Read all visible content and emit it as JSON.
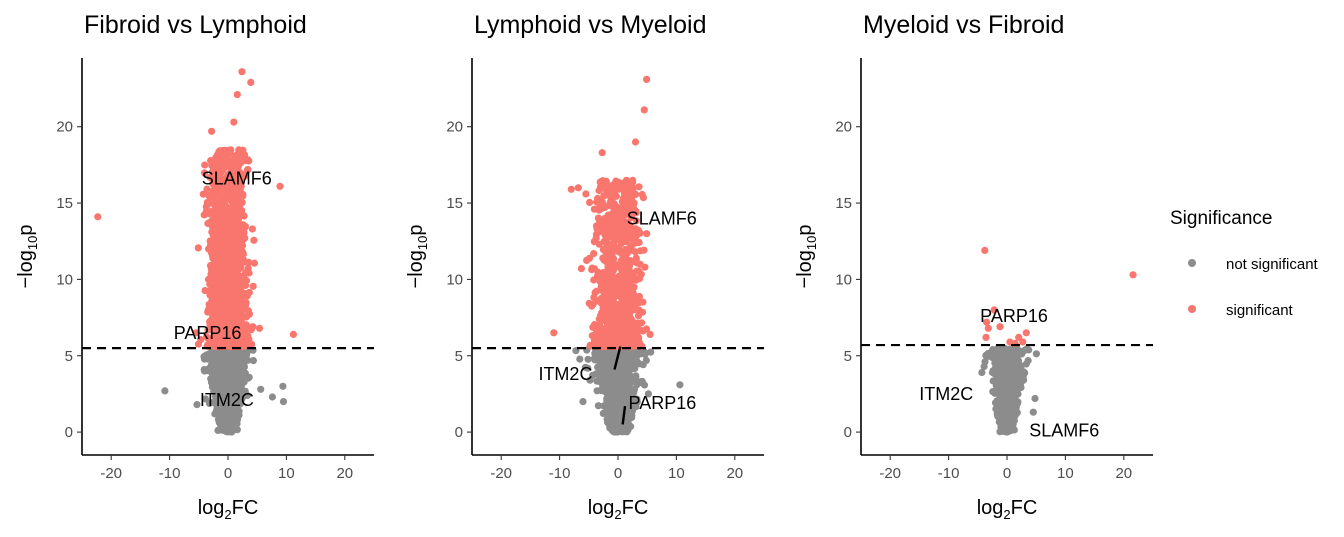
{
  "chart_data": [
    {
      "type": "scatter",
      "title": "Fibroid vs Lymphoid",
      "xlabel": {
        "base": "log",
        "sub": "2",
        "rest": "FC"
      },
      "ylabel": {
        "pre": "−log",
        "sub": "10",
        "rest": "p"
      },
      "xlim": [
        -25,
        25
      ],
      "ylim": [
        -1.5,
        24.5
      ],
      "xticks": [
        -20,
        -10,
        0,
        10,
        20
      ],
      "yticks": [
        0,
        5,
        10,
        15,
        20
      ],
      "threshold": 5.5,
      "series": [
        {
          "name": "not significant",
          "points": [
            [
              -10.8,
              2.7
            ],
            [
              7.6,
              2.3
            ],
            [
              9.4,
              3.0
            ],
            [
              9.5,
              2.0
            ],
            [
              -5.3,
              1.8
            ],
            [
              5.6,
              2.8
            ]
          ]
        },
        {
          "name": "significant",
          "points": [
            [
              -22.3,
              14.1
            ],
            [
              -2.8,
              19.7
            ],
            [
              2.4,
              23.6
            ],
            [
              3.9,
              22.9
            ],
            [
              1.6,
              22.1
            ],
            [
              1.0,
              20.3
            ],
            [
              8.9,
              16.1
            ],
            [
              11.2,
              6.4
            ],
            [
              -5.5,
              6.5
            ],
            [
              5.4,
              6.8
            ]
          ]
        }
      ],
      "clusters": [
        {
          "series": "not significant",
          "n": 900,
          "xsd": 1.6,
          "ymax": 5.4
        },
        {
          "series": "significant",
          "n": 1300,
          "xsd": 2.0,
          "ymin": 5.6,
          "ymax": 18.5
        }
      ],
      "labels": [
        {
          "text": "SLAMF6",
          "x": 1.5,
          "y": 16.6,
          "point": [
            1.8,
            16.9
          ]
        },
        {
          "text": "PARP16",
          "x": -3.5,
          "y": 6.5,
          "point": [
            -2.9,
            6.3
          ]
        },
        {
          "text": "ITM2C",
          "x": -0.2,
          "y": 2.1,
          "point": [
            0.3,
            2.3
          ]
        }
      ]
    },
    {
      "type": "scatter",
      "title": "Lymphoid vs Myeloid",
      "xlabel": {
        "base": "log",
        "sub": "2",
        "rest": "FC"
      },
      "ylabel": {
        "pre": "−log",
        "sub": "10",
        "rest": "p"
      },
      "xlim": [
        -25,
        25
      ],
      "ylim": [
        -1.5,
        24.5
      ],
      "xticks": [
        -20,
        -10,
        0,
        10,
        20
      ],
      "yticks": [
        0,
        5,
        10,
        15,
        20
      ],
      "threshold": 5.5,
      "series": [
        {
          "name": "not significant",
          "points": [
            [
              10.6,
              3.1
            ],
            [
              -6.0,
              2.0
            ],
            [
              5.2,
              2.5
            ],
            [
              -4.8,
              3.4
            ]
          ]
        },
        {
          "name": "significant",
          "points": [
            [
              4.9,
              23.1
            ],
            [
              4.5,
              21.1
            ],
            [
              3.0,
              19.0
            ],
            [
              -2.7,
              18.3
            ],
            [
              -8.0,
              15.9
            ],
            [
              -6.8,
              16.0
            ],
            [
              -5.5,
              15.6
            ],
            [
              -11.0,
              6.5
            ],
            [
              5.5,
              6.4
            ]
          ]
        }
      ],
      "clusters": [
        {
          "series": "not significant",
          "n": 900,
          "xsd": 1.8,
          "ymax": 5.4
        },
        {
          "series": "significant",
          "n": 900,
          "xsd": 2.3,
          "ymin": 5.6,
          "ymax": 16.5
        }
      ],
      "labels": [
        {
          "text": "SLAMF6",
          "x": 7.5,
          "y": 14.0,
          "point": [
            2.5,
            14.5
          ]
        },
        {
          "text": "ITM2C",
          "x": -9.0,
          "y": 3.8,
          "point": [
            0.4,
            5.6
          ],
          "segment": [
            [
              -0.6,
              4.1
            ],
            [
              0.4,
              5.6
            ]
          ]
        },
        {
          "text": "PARP16",
          "x": 7.6,
          "y": 1.9,
          "point": [
            0.8,
            0.5
          ],
          "segment": [
            [
              0.8,
              0.5
            ],
            [
              1.2,
              1.7
            ]
          ]
        }
      ]
    },
    {
      "type": "scatter",
      "title": "Myeloid vs Fibroid",
      "xlabel": {
        "base": "log",
        "sub": "2",
        "rest": "FC"
      },
      "ylabel": {
        "pre": "−log",
        "sub": "10",
        "rest": "p"
      },
      "xlim": [
        -25,
        25
      ],
      "ylim": [
        -1.5,
        24.5
      ],
      "xticks": [
        -20,
        -10,
        0,
        10,
        20
      ],
      "yticks": [
        0,
        5,
        10,
        15,
        20
      ],
      "threshold": 5.7,
      "series": [
        {
          "name": "not significant",
          "points": [
            [
              -4.3,
              3.9
            ],
            [
              4.8,
              2.2
            ],
            [
              4.5,
              1.3
            ]
          ]
        },
        {
          "name": "significant",
          "points": [
            [
              -3.8,
              11.9
            ],
            [
              21.6,
              10.3
            ],
            [
              -2.2,
              8.0
            ],
            [
              -3.5,
              7.2
            ],
            [
              -3.6,
              6.2
            ],
            [
              -1.2,
              6.9
            ],
            [
              -3.2,
              6.8
            ],
            [
              0.5,
              5.9
            ],
            [
              2.0,
              6.2
            ],
            [
              3.3,
              6.5
            ],
            [
              1.4,
              5.8
            ],
            [
              2.7,
              5.9
            ]
          ]
        }
      ],
      "clusters": [
        {
          "series": "not significant",
          "n": 700,
          "xsd": 1.3,
          "ymax": 5.5
        }
      ],
      "labels": [
        {
          "text": "PARP16",
          "x": 1.2,
          "y": 7.6,
          "point": [
            -2.2,
            8.0
          ]
        },
        {
          "text": "ITM2C",
          "x": -10.4,
          "y": 2.5,
          "point": [
            -2.8,
            2.3
          ]
        },
        {
          "text": "SLAMF6",
          "x": 9.8,
          "y": 0.1,
          "point": [
            2.0,
            0.5
          ]
        }
      ]
    }
  ],
  "legend": {
    "title": "Significance",
    "placement": "right",
    "items": [
      {
        "label": "not significant",
        "color": "#8c8c8c"
      },
      {
        "label": "significant",
        "color": "#f8766d"
      }
    ]
  }
}
